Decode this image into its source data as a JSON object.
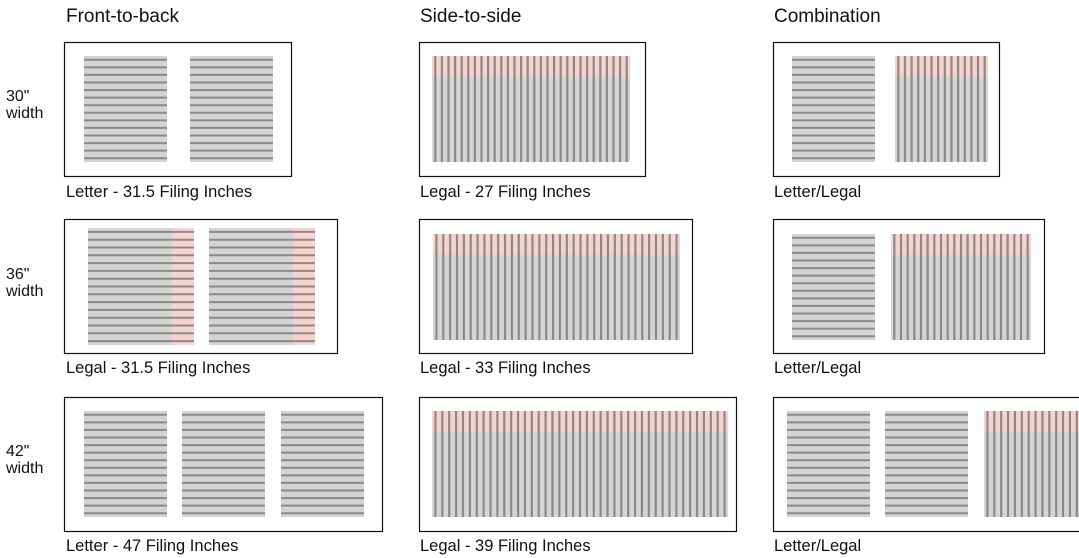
{
  "columns": {
    "front_to_back": "Front-to-back",
    "side_to_side": "Side-to-side",
    "combination": "Combination"
  },
  "rows": {
    "w30": "30\"\nwidth",
    "w36": "36\"\nwidth",
    "w42": "42\"\nwidth"
  },
  "captions": {
    "r30_ftb": "Letter - 31.5 Filing Inches",
    "r30_sts": "Legal - 27 Filing Inches",
    "r30_comb": "Letter/Legal",
    "r36_ftb": "Legal - 31.5 Filing Inches",
    "r36_sts": "Legal - 33 Filing Inches",
    "r36_comb": "Letter/Legal",
    "r42_ftb": "Letter - 47 Filing Inches",
    "r42_sts": "Legal - 39 Filing Inches",
    "r42_comb": "Letter/Legal"
  },
  "colors": {
    "frame": "#111111",
    "file_fill": "#d4d4d4",
    "file_line": "#8a8a8a",
    "legal_extension": "#f8d2cf"
  }
}
